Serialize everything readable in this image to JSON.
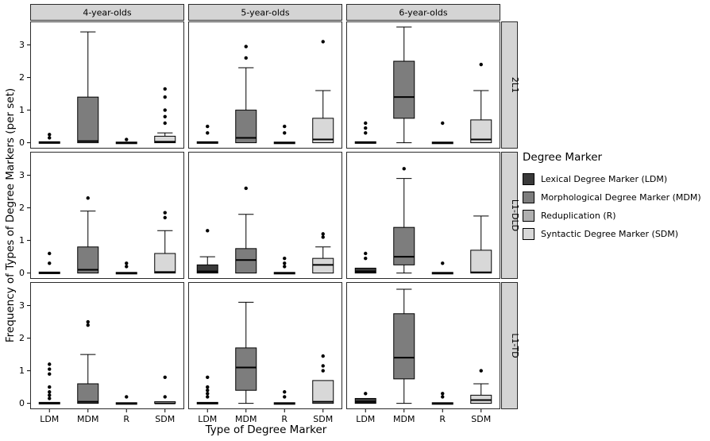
{
  "chart_data": {
    "type": "boxplot",
    "title": "",
    "xlabel": "Type of Degree Marker",
    "ylabel": "Frequency of Types of Degree Markers (per set)",
    "ylim": [
      -0.18,
      3.72
    ],
    "yticks": [
      0,
      1,
      2,
      3
    ],
    "categories": [
      "LDM",
      "MDM",
      "R",
      "SDM"
    ],
    "facet_cols": [
      "4-year-olds",
      "5-year-olds",
      "6-year-olds"
    ],
    "facet_rows": [
      "2L1",
      "L1-DLD",
      "L1-TD"
    ],
    "grid": "off",
    "legend_position": "right",
    "colors": {
      "LDM": "#3a3a3a",
      "MDM": "#7d7d7d",
      "R": "#b0b0b0",
      "SDM": "#d8d8d8"
    },
    "strip_fill": "#d4d4d4",
    "legend": {
      "title": "Degree Marker",
      "entries": [
        {
          "label": "Lexical Degree Marker (LDM)",
          "color": "#3a3a3a"
        },
        {
          "label": "Morphological Degree Marker (MDM)",
          "color": "#7d7d7d"
        },
        {
          "label": "Reduplication (R)",
          "color": "#b0b0b0"
        },
        {
          "label": "Syntactic Degree Marker (SDM)",
          "color": "#d8d8d8"
        }
      ]
    },
    "panels": [
      {
        "row": "2L1",
        "col": "4-year-olds",
        "boxes": [
          {
            "cat": "LDM",
            "lo": 0,
            "q1": 0,
            "median": 0,
            "q3": 0.03,
            "hi": 0.03,
            "outliers": [
              0.15,
              0.25
            ]
          },
          {
            "cat": "MDM",
            "lo": 0,
            "q1": 0,
            "median": 0.05,
            "q3": 1.4,
            "hi": 3.4,
            "outliers": []
          },
          {
            "cat": "R",
            "lo": 0,
            "q1": 0,
            "median": 0,
            "q3": 0.02,
            "hi": 0.02,
            "outliers": [
              0.1
            ]
          },
          {
            "cat": "SDM",
            "lo": 0,
            "q1": 0,
            "median": 0.03,
            "q3": 0.2,
            "hi": 0.3,
            "outliers": [
              0.6,
              0.8,
              1.0,
              1.4,
              1.65
            ]
          }
        ]
      },
      {
        "row": "2L1",
        "col": "5-year-olds",
        "boxes": [
          {
            "cat": "LDM",
            "lo": 0,
            "q1": 0,
            "median": 0,
            "q3": 0.03,
            "hi": 0.03,
            "outliers": [
              0.3,
              0.5
            ]
          },
          {
            "cat": "MDM",
            "lo": 0,
            "q1": 0,
            "median": 0.15,
            "q3": 1.0,
            "hi": 2.3,
            "outliers": [
              2.6,
              2.95
            ]
          },
          {
            "cat": "R",
            "lo": 0,
            "q1": 0,
            "median": 0,
            "q3": 0.02,
            "hi": 0.02,
            "outliers": [
              0.3,
              0.5
            ]
          },
          {
            "cat": "SDM",
            "lo": 0,
            "q1": 0,
            "median": 0.1,
            "q3": 0.75,
            "hi": 1.6,
            "outliers": [
              3.1
            ]
          }
        ]
      },
      {
        "row": "2L1",
        "col": "6-year-olds",
        "boxes": [
          {
            "cat": "LDM",
            "lo": 0,
            "q1": 0,
            "median": 0,
            "q3": 0.03,
            "hi": 0.03,
            "outliers": [
              0.3,
              0.45,
              0.6
            ]
          },
          {
            "cat": "MDM",
            "lo": 0,
            "q1": 0.75,
            "median": 1.4,
            "q3": 2.5,
            "hi": 3.55,
            "outliers": []
          },
          {
            "cat": "R",
            "lo": 0,
            "q1": 0,
            "median": 0,
            "q3": 0.02,
            "hi": 0.02,
            "outliers": [
              0.6
            ]
          },
          {
            "cat": "SDM",
            "lo": 0,
            "q1": 0,
            "median": 0.1,
            "q3": 0.7,
            "hi": 1.6,
            "outliers": [
              2.4
            ]
          }
        ]
      },
      {
        "row": "L1-DLD",
        "col": "4-year-olds",
        "boxes": [
          {
            "cat": "LDM",
            "lo": 0,
            "q1": 0,
            "median": 0,
            "q3": 0.03,
            "hi": 0.03,
            "outliers": [
              0.3,
              0.6
            ]
          },
          {
            "cat": "MDM",
            "lo": 0,
            "q1": 0,
            "median": 0.1,
            "q3": 0.8,
            "hi": 1.9,
            "outliers": [
              2.3
            ]
          },
          {
            "cat": "R",
            "lo": 0,
            "q1": 0,
            "median": 0,
            "q3": 0.02,
            "hi": 0.02,
            "outliers": [
              0.2,
              0.3
            ]
          },
          {
            "cat": "SDM",
            "lo": 0,
            "q1": 0,
            "median": 0.03,
            "q3": 0.6,
            "hi": 1.3,
            "outliers": [
              1.7,
              1.85
            ]
          }
        ]
      },
      {
        "row": "L1-DLD",
        "col": "5-year-olds",
        "boxes": [
          {
            "cat": "LDM",
            "lo": 0,
            "q1": 0,
            "median": 0.05,
            "q3": 0.25,
            "hi": 0.5,
            "outliers": [
              1.3
            ]
          },
          {
            "cat": "MDM",
            "lo": 0,
            "q1": 0,
            "median": 0.4,
            "q3": 0.75,
            "hi": 1.8,
            "outliers": [
              2.6
            ]
          },
          {
            "cat": "R",
            "lo": 0,
            "q1": 0,
            "median": 0,
            "q3": 0.02,
            "hi": 0.02,
            "outliers": [
              0.2,
              0.3,
              0.45
            ]
          },
          {
            "cat": "SDM",
            "lo": 0,
            "q1": 0,
            "median": 0.25,
            "q3": 0.45,
            "hi": 0.8,
            "outliers": [
              1.1,
              1.2
            ]
          }
        ]
      },
      {
        "row": "L1-DLD",
        "col": "6-year-olds",
        "boxes": [
          {
            "cat": "LDM",
            "lo": 0,
            "q1": 0,
            "median": 0.05,
            "q3": 0.15,
            "hi": 0.15,
            "outliers": [
              0.45,
              0.6
            ]
          },
          {
            "cat": "MDM",
            "lo": 0,
            "q1": 0.25,
            "median": 0.5,
            "q3": 1.4,
            "hi": 2.9,
            "outliers": [
              3.2
            ]
          },
          {
            "cat": "R",
            "lo": 0,
            "q1": 0,
            "median": 0,
            "q3": 0.02,
            "hi": 0.02,
            "outliers": [
              0.3
            ]
          },
          {
            "cat": "SDM",
            "lo": 0,
            "q1": 0,
            "median": 0.02,
            "q3": 0.7,
            "hi": 1.75,
            "outliers": []
          }
        ]
      },
      {
        "row": "L1-TD",
        "col": "4-year-olds",
        "boxes": [
          {
            "cat": "LDM",
            "lo": 0,
            "q1": 0,
            "median": 0,
            "q3": 0.03,
            "hi": 0.03,
            "outliers": [
              0.15,
              0.25,
              0.35,
              0.5,
              0.9,
              1.05,
              1.2
            ]
          },
          {
            "cat": "MDM",
            "lo": 0,
            "q1": 0,
            "median": 0.05,
            "q3": 0.6,
            "hi": 1.5,
            "outliers": [
              2.4,
              2.5
            ]
          },
          {
            "cat": "R",
            "lo": 0,
            "q1": 0,
            "median": 0,
            "q3": 0.02,
            "hi": 0.02,
            "outliers": [
              0.2
            ]
          },
          {
            "cat": "SDM",
            "lo": 0,
            "q1": 0,
            "median": 0,
            "q3": 0.05,
            "hi": 0.05,
            "outliers": [
              0.2,
              0.8
            ]
          }
        ]
      },
      {
        "row": "L1-TD",
        "col": "5-year-olds",
        "boxes": [
          {
            "cat": "LDM",
            "lo": 0,
            "q1": 0,
            "median": 0,
            "q3": 0.03,
            "hi": 0.03,
            "outliers": [
              0.2,
              0.3,
              0.4,
              0.5,
              0.8
            ]
          },
          {
            "cat": "MDM",
            "lo": 0,
            "q1": 0.4,
            "median": 1.1,
            "q3": 1.7,
            "hi": 3.1,
            "outliers": []
          },
          {
            "cat": "R",
            "lo": 0,
            "q1": 0,
            "median": 0,
            "q3": 0.02,
            "hi": 0.02,
            "outliers": [
              0.2,
              0.35
            ]
          },
          {
            "cat": "SDM",
            "lo": 0,
            "q1": 0,
            "median": 0.05,
            "q3": 0.7,
            "hi": 0.7,
            "outliers": [
              1.0,
              1.15,
              1.45
            ]
          }
        ]
      },
      {
        "row": "L1-TD",
        "col": "6-year-olds",
        "boxes": [
          {
            "cat": "LDM",
            "lo": 0,
            "q1": 0,
            "median": 0.05,
            "q3": 0.15,
            "hi": 0.15,
            "outliers": [
              0.3
            ]
          },
          {
            "cat": "MDM",
            "lo": 0,
            "q1": 0.75,
            "median": 1.4,
            "q3": 2.75,
            "hi": 3.5,
            "outliers": []
          },
          {
            "cat": "R",
            "lo": 0,
            "q1": 0,
            "median": 0,
            "q3": 0.02,
            "hi": 0.02,
            "outliers": [
              0.2,
              0.3
            ]
          },
          {
            "cat": "SDM",
            "lo": 0,
            "q1": 0,
            "median": 0.1,
            "q3": 0.25,
            "hi": 0.6,
            "outliers": [
              1.0
            ]
          }
        ]
      }
    ]
  }
}
